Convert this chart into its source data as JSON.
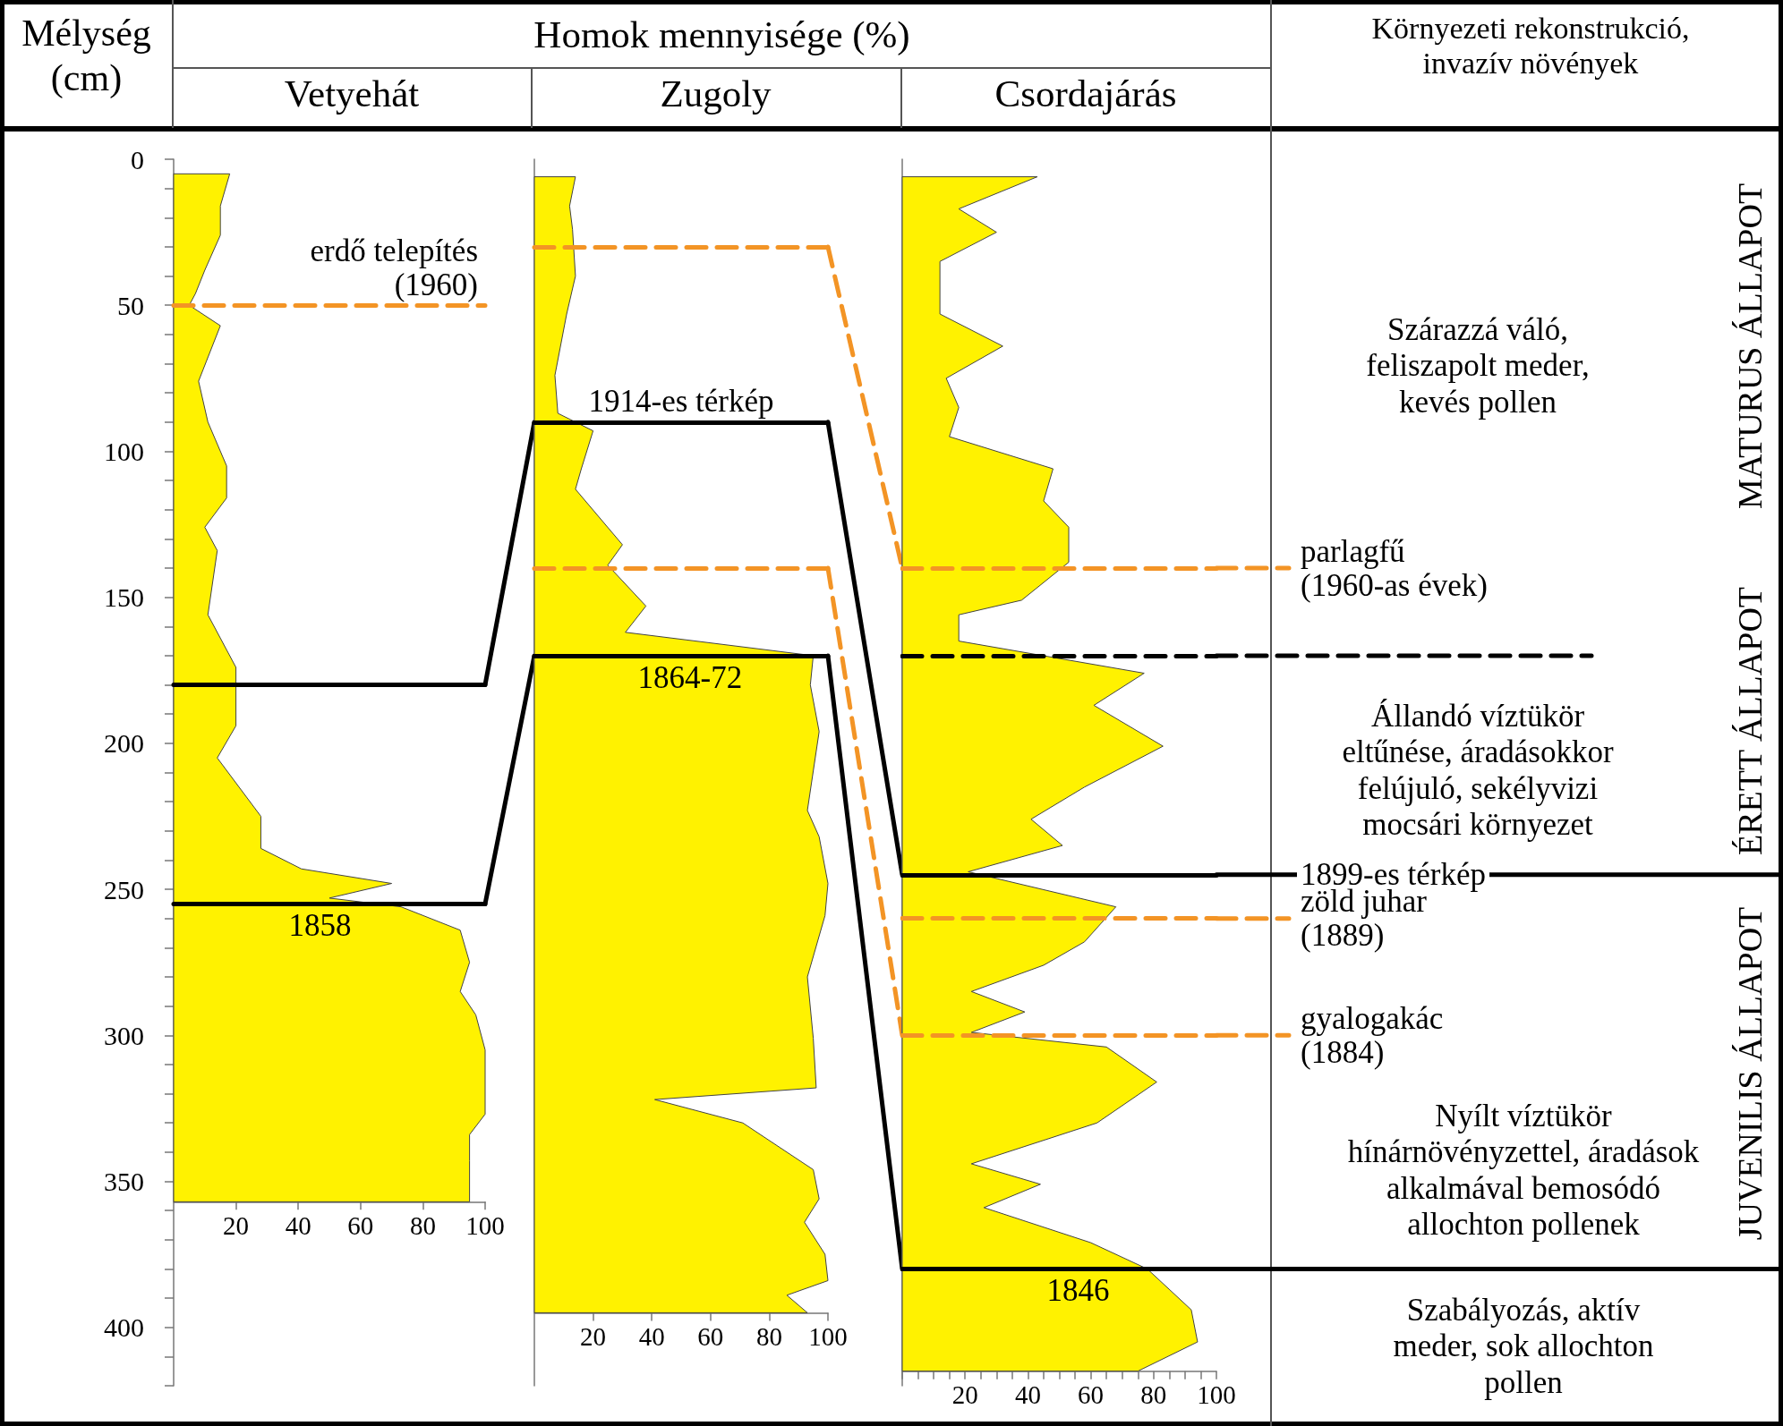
{
  "chart_data": [
    {
      "type": "area",
      "title": "Vetyehát",
      "ylabel": "Mélység (cm)",
      "orientation": "horizontal",
      "color": "#fff200",
      "x": [
        5,
        16,
        26,
        38,
        46,
        50,
        57,
        76,
        90,
        105,
        116,
        126,
        134,
        156,
        174,
        194,
        205,
        225,
        236,
        243,
        248,
        253,
        256,
        264,
        275,
        285,
        293,
        305,
        327,
        334,
        343,
        357
      ],
      "values": [
        18,
        15,
        15,
        10,
        7,
        5,
        15,
        8,
        11,
        17,
        17,
        10,
        14,
        11,
        20,
        20,
        14,
        28,
        28,
        41,
        70,
        50,
        73,
        92,
        95,
        92,
        97,
        100,
        100,
        95,
        95,
        95
      ],
      "xlim": [
        0,
        100
      ],
      "xticks": [
        20,
        40,
        60,
        80,
        100
      ],
      "ylim": [
        420,
        0
      ],
      "yticks": [
        0,
        {
          "value": 10,
          "label": null
        },
        {
          "value": 20,
          "label": null
        },
        {
          "value": 30,
          "label": null
        },
        {
          "value": 40,
          "label": null
        },
        50,
        {
          "value": 60,
          "label": null
        },
        {
          "value": 70,
          "label": null
        },
        {
          "value": 80,
          "label": null
        },
        {
          "value": 90,
          "label": null
        },
        100,
        {
          "value": 110,
          "label": null
        },
        {
          "value": 120,
          "label": null
        },
        {
          "value": 130,
          "label": null
        },
        {
          "value": 140,
          "label": null
        },
        150,
        {
          "value": 160,
          "label": null
        },
        {
          "value": 170,
          "label": null
        },
        {
          "value": 180,
          "label": null
        },
        {
          "value": 190,
          "label": null
        },
        200,
        {
          "value": 210,
          "label": null
        },
        {
          "value": 220,
          "label": null
        },
        {
          "value": 230,
          "label": null
        },
        {
          "value": 240,
          "label": null
        },
        250,
        {
          "value": 260,
          "label": null
        },
        {
          "value": 270,
          "label": null
        },
        {
          "value": 280,
          "label": null
        },
        {
          "value": 290,
          "label": null
        },
        300,
        {
          "value": 310,
          "label": null
        },
        {
          "value": 320,
          "label": null
        },
        {
          "value": 330,
          "label": null
        },
        {
          "value": 340,
          "label": null
        },
        350,
        {
          "value": 360,
          "label": null
        },
        {
          "value": 370,
          "label": null
        },
        {
          "value": 380,
          "label": null
        },
        {
          "value": 390,
          "label": null
        },
        400,
        {
          "value": 410,
          "label": null
        },
        {
          "value": 420,
          "label": null
        }
      ],
      "ref_lines": [
        {
          "axis": "y",
          "value": 50,
          "label": "erdő telepítés (1960)",
          "color": "#f39425",
          "line_style": "dashed"
        },
        {
          "axis": "y",
          "value": 180,
          "label": null,
          "color": "#000000",
          "line_style": "solid"
        },
        {
          "axis": "y",
          "value": 255,
          "label": null,
          "color": "#000000",
          "line_style": "solid"
        }
      ],
      "annotations": [
        {
          "text": "1858",
          "x": 47,
          "y": 255
        }
      ]
    },
    {
      "type": "area",
      "title": "Zugoly",
      "xlabel": "Homok mennyisége (%)",
      "orientation": "horizontal",
      "color": "#fff200",
      "tick_labels": "x",
      "x": [
        6,
        16,
        24,
        40,
        53,
        74,
        87,
        93,
        106,
        113,
        132,
        139,
        153,
        162,
        170,
        180,
        196,
        223,
        232,
        248,
        259,
        280,
        301,
        318,
        322,
        330,
        346,
        356,
        364,
        375,
        384,
        389,
        395
      ],
      "values": [
        14,
        12,
        13,
        14,
        11,
        7,
        8,
        20,
        16,
        14,
        30,
        25,
        38,
        31,
        95,
        94,
        97,
        93,
        97,
        100,
        99,
        93,
        95,
        96,
        41,
        71,
        95,
        97,
        92,
        99,
        100,
        86,
        93
      ],
      "xlim": [
        0,
        100
      ],
      "xticks": [
        20,
        40,
        60,
        80,
        100
      ],
      "ylim": [
        420,
        0
      ],
      "ref_lines": [
        {
          "axis": "y",
          "value": 30,
          "label": null,
          "color": "#f39425",
          "line_style": "dashed"
        },
        {
          "axis": "y",
          "value": 90,
          "label": "1914-es térkép",
          "color": "#000000",
          "line_style": "solid"
        },
        {
          "axis": "y",
          "value": 140,
          "label": null,
          "color": "#f39425",
          "line_style": "dashed"
        },
        {
          "axis": "y",
          "value": 170,
          "label": null,
          "color": "#000000",
          "line_style": "solid"
        }
      ],
      "annotations": [
        {
          "text": "1864-72",
          "x": 53,
          "y": 170
        }
      ]
    },
    {
      "type": "area",
      "title": "Csordajárás",
      "orientation": "horizontal",
      "color": "#fff200",
      "tick_labels": "x",
      "x": [
        6,
        17,
        25,
        35,
        53,
        64,
        75,
        85,
        95,
        106,
        117,
        126,
        138,
        151,
        156,
        165,
        176,
        187,
        201,
        215,
        226,
        235,
        244,
        256,
        268,
        276,
        285,
        292,
        299,
        304,
        316,
        330,
        344,
        351,
        359,
        371,
        380,
        394,
        405,
        415
      ],
      "values": [
        43,
        18,
        30,
        12,
        12,
        32,
        14,
        18,
        15,
        48,
        45,
        53,
        53,
        38,
        18,
        18,
        77,
        61,
        83,
        58,
        41,
        51,
        21,
        68,
        58,
        45,
        22,
        39,
        22,
        65,
        81,
        62,
        22,
        44,
        26,
        60,
        78,
        92,
        94,
        75
      ],
      "xlim": [
        0,
        100
      ],
      "xticks": [
        {
          "value": 0,
          "label": null
        },
        {
          "value": 5,
          "label": null
        },
        {
          "value": 10,
          "label": null
        },
        {
          "value": 15,
          "label": null
        },
        20,
        {
          "value": 25,
          "label": null
        },
        {
          "value": 30,
          "label": null
        },
        {
          "value": 35,
          "label": null
        },
        40,
        {
          "value": 45,
          "label": null
        },
        {
          "value": 50,
          "label": null
        },
        {
          "value": 55,
          "label": null
        },
        60,
        {
          "value": 65,
          "label": null
        },
        {
          "value": 70,
          "label": null
        },
        {
          "value": 75,
          "label": null
        },
        80,
        {
          "value": 85,
          "label": null
        },
        {
          "value": 90,
          "label": null
        },
        {
          "value": 95,
          "label": null
        },
        100
      ],
      "ylim": [
        420,
        0
      ],
      "ref_lines": [
        {
          "axis": "y",
          "value": 140,
          "label": "parlagfű (1960-as évek)",
          "color": "#f39425",
          "line_style": "dashed"
        },
        {
          "axis": "y",
          "value": 170,
          "label": null,
          "color": "#000000",
          "line_style": "dashed"
        },
        {
          "axis": "y",
          "value": 245,
          "label": "1899-es térkép",
          "color": "#000000",
          "line_style": "solid"
        },
        {
          "axis": "y",
          "value": 260,
          "label": "zöld juhar (1889)",
          "color": "#f39425",
          "line_style": "dashed"
        },
        {
          "axis": "y",
          "value": 300,
          "label": "gyalogakác (1884)",
          "color": "#f39425",
          "line_style": "dashed"
        },
        {
          "axis": "y",
          "value": 380,
          "label": null,
          "color": "#000000",
          "line_style": "solid"
        }
      ],
      "annotations": [
        {
          "text": "1846",
          "x": 56,
          "y": 380
        }
      ]
    },
    {
      "type": "other",
      "title": "Környezeti rekonstrukció, invazív növények",
      "annotations": [
        "Szárazzá váló, feliszapolt meder, kevés pollen",
        "MATURUS ÁLLAPOT",
        "Állandó víztükör eltűnése, áradásokkor felújuló, sekélyvizi mocsári környezet",
        "ÉRETT ÁLLAPOT",
        "Nyílt víztükör hínárnövényzettel, áradások alkalmával bemosódó allochton pollenek",
        "JUVENILIS ÁLLAPOT",
        "Szabályozás, aktív meder, sok allochton pollen"
      ]
    }
  ]
}
